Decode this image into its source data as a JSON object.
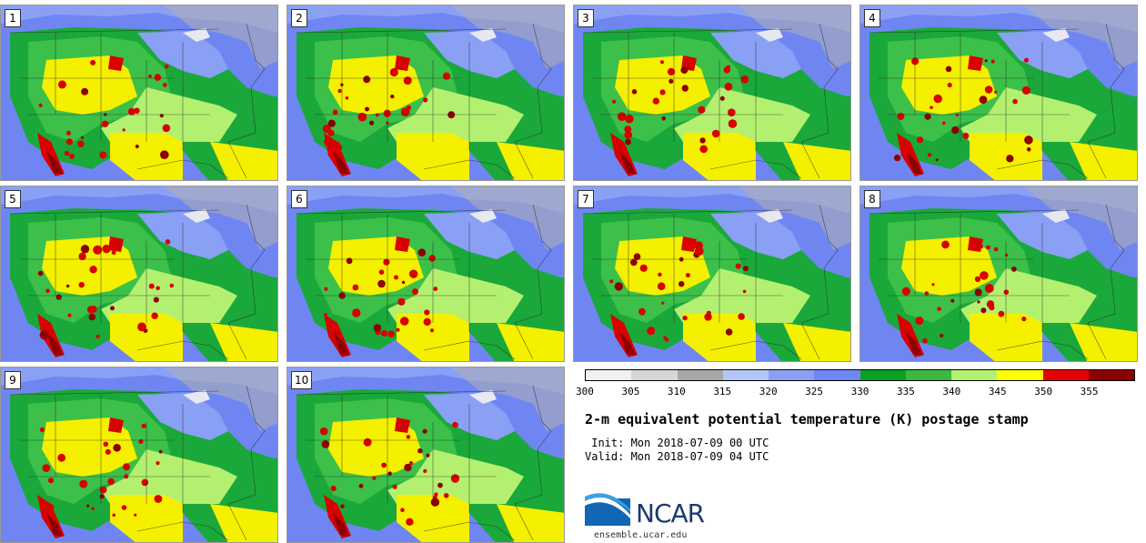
{
  "panels": [
    {
      "label": "1"
    },
    {
      "label": "2"
    },
    {
      "label": "3"
    },
    {
      "label": "4"
    },
    {
      "label": "5"
    },
    {
      "label": "6"
    },
    {
      "label": "7"
    },
    {
      "label": "8"
    },
    {
      "label": "9"
    },
    {
      "label": "10"
    }
  ],
  "colorbar": {
    "colors": [
      "#f0f0f0",
      "#d6d6d6",
      "#a8a8a8",
      "#b4c4f6",
      "#8aa0f4",
      "#6f86f2",
      "#0aa020",
      "#3cb83c",
      "#b4f070",
      "#ffff00",
      "#e60000",
      "#8c0000"
    ],
    "ticks": [
      "300",
      "305",
      "310",
      "315",
      "320",
      "325",
      "330",
      "335",
      "340",
      "345",
      "350",
      "355"
    ]
  },
  "title": "2-m equivalent potential temperature (K) postage stamp",
  "init": " Init: Mon 2018-07-09 00 UTC",
  "valid": "Valid: Mon 2018-07-09 04 UTC",
  "logo": {
    "name": "NCAR",
    "site": "ensemble.ucar.edu"
  },
  "map_colors": {
    "ocean": "#6f86f2",
    "water_light": "#8aa0f4",
    "north": "#8aa0f4",
    "gray": "#b0b0b0",
    "green": "#1aa83a",
    "lightgreen": "#3cc04a",
    "yellow": "#f4f000",
    "lime": "#b4f070",
    "red": "#d80000",
    "darkred": "#8c0000",
    "lake": "#e8e8f0"
  }
}
